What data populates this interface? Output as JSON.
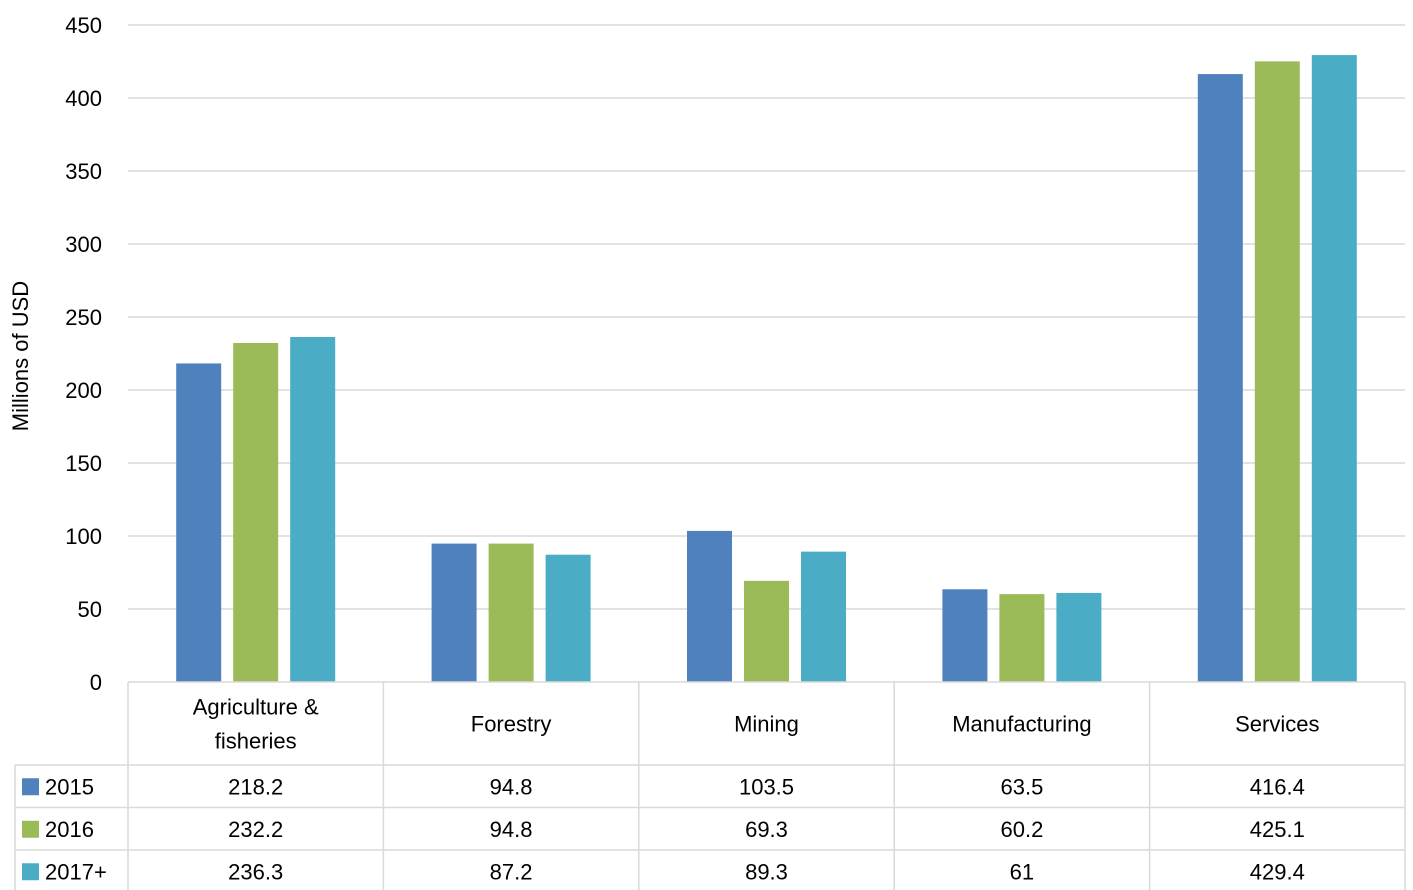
{
  "chart_data": {
    "type": "bar",
    "title": "",
    "xlabel": "",
    "ylabel": "Millions of USD",
    "ylim": [
      0,
      450
    ],
    "yticks": [
      0,
      50,
      100,
      150,
      200,
      250,
      300,
      350,
      400,
      450
    ],
    "grid": true,
    "legend": "data-table",
    "categories": [
      [
        "Agriculture &",
        "fisheries"
      ],
      [
        "Forestry"
      ],
      [
        "Mining"
      ],
      [
        "Manufacturing"
      ],
      [
        "Services"
      ]
    ],
    "series": [
      {
        "name": "2015",
        "color": "#4f81bd",
        "values": [
          218.2,
          94.8,
          103.5,
          63.5,
          416.4
        ],
        "labels": [
          "218.2",
          "94.8",
          "103.5",
          "63.5",
          "416.4"
        ]
      },
      {
        "name": "2016",
        "color": "#9bbb59",
        "values": [
          232.2,
          94.8,
          69.3,
          60.2,
          425.1
        ],
        "labels": [
          "232.2",
          "94.8",
          "69.3",
          "60.2",
          "425.1"
        ]
      },
      {
        "name": "2017+",
        "color": "#4bacc6",
        "values": [
          236.3,
          87.2,
          89.3,
          61,
          429.4
        ],
        "labels": [
          "236.3",
          "87.2",
          "89.3",
          "61",
          "429.4"
        ]
      }
    ]
  }
}
